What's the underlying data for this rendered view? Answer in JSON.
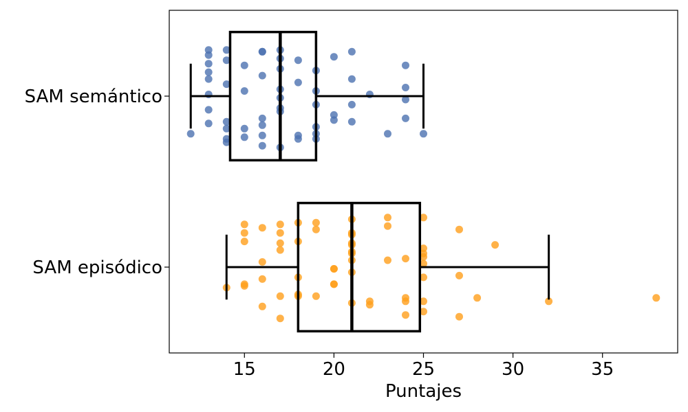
{
  "chart_data": {
    "type": "box",
    "xlabel": "Puntajes",
    "ylabel": "",
    "xlim": [
      10.8,
      39.2
    ],
    "x_ticks": [
      15,
      20,
      25,
      30,
      35
    ],
    "categories": [
      "SAM semántico",
      "SAM episódico"
    ],
    "grid": false,
    "legend": "none",
    "series": [
      {
        "name": "SAM semántico",
        "color": "#4c72b0",
        "box": {
          "whisker_low": 12,
          "q1": 14.2,
          "median": 17,
          "q3": 19,
          "whisker_high": 25
        },
        "points": [
          {
            "x": 12,
            "j": 0.22
          },
          {
            "x": 13,
            "j": -0.27
          },
          {
            "x": 13,
            "j": -0.24
          },
          {
            "x": 13,
            "j": -0.19
          },
          {
            "x": 13,
            "j": -0.14
          },
          {
            "x": 13,
            "j": -0.1
          },
          {
            "x": 13,
            "j": -0.01
          },
          {
            "x": 13,
            "j": 0.08
          },
          {
            "x": 13,
            "j": 0.16
          },
          {
            "x": 14,
            "j": -0.27
          },
          {
            "x": 14,
            "j": -0.21
          },
          {
            "x": 14,
            "j": -0.07
          },
          {
            "x": 14,
            "j": 0.15
          },
          {
            "x": 14,
            "j": 0.19
          },
          {
            "x": 14,
            "j": 0.25
          },
          {
            "x": 14,
            "j": 0.27
          },
          {
            "x": 15,
            "j": -0.18
          },
          {
            "x": 15,
            "j": -0.03
          },
          {
            "x": 15,
            "j": 0.19
          },
          {
            "x": 15,
            "j": 0.24
          },
          {
            "x": 16,
            "j": -0.26
          },
          {
            "x": 16,
            "j": -0.26
          },
          {
            "x": 16,
            "j": -0.12
          },
          {
            "x": 16,
            "j": 0.13
          },
          {
            "x": 16,
            "j": 0.17
          },
          {
            "x": 16,
            "j": 0.23
          },
          {
            "x": 16,
            "j": 0.29
          },
          {
            "x": 17,
            "j": -0.27
          },
          {
            "x": 17,
            "j": -0.22
          },
          {
            "x": 17,
            "j": -0.16
          },
          {
            "x": 17,
            "j": -0.04
          },
          {
            "x": 17,
            "j": 0.01
          },
          {
            "x": 17,
            "j": 0.07
          },
          {
            "x": 17,
            "j": 0.09
          },
          {
            "x": 17,
            "j": 0.3
          },
          {
            "x": 18,
            "j": -0.21
          },
          {
            "x": 18,
            "j": -0.08
          },
          {
            "x": 18,
            "j": 0.23
          },
          {
            "x": 18,
            "j": 0.25
          },
          {
            "x": 19,
            "j": -0.15
          },
          {
            "x": 19,
            "j": -0.03
          },
          {
            "x": 19,
            "j": 0.05
          },
          {
            "x": 19,
            "j": 0.18
          },
          {
            "x": 19,
            "j": 0.22
          },
          {
            "x": 19,
            "j": 0.25
          },
          {
            "x": 20,
            "j": -0.23
          },
          {
            "x": 20,
            "j": 0.11
          },
          {
            "x": 20,
            "j": 0.14
          },
          {
            "x": 21,
            "j": -0.26
          },
          {
            "x": 21,
            "j": -0.1
          },
          {
            "x": 21,
            "j": 0.05
          },
          {
            "x": 21,
            "j": 0.15
          },
          {
            "x": 22,
            "j": -0.01
          },
          {
            "x": 23,
            "j": 0.22
          },
          {
            "x": 24,
            "j": -0.18
          },
          {
            "x": 24,
            "j": -0.05
          },
          {
            "x": 24,
            "j": 0.02
          },
          {
            "x": 24,
            "j": 0.13
          },
          {
            "x": 25,
            "j": 0.22
          }
        ]
      },
      {
        "name": "SAM episódico",
        "color": "#ff9f1c",
        "box": {
          "whisker_low": 14,
          "q1": 18,
          "median": 21,
          "q3": 24.8,
          "whisker_high": 32
        },
        "points": [
          {
            "x": 14,
            "j": 0.12
          },
          {
            "x": 15,
            "j": -0.25
          },
          {
            "x": 15,
            "j": -0.2
          },
          {
            "x": 15,
            "j": -0.15
          },
          {
            "x": 15,
            "j": 0.1
          },
          {
            "x": 15,
            "j": 0.11
          },
          {
            "x": 16,
            "j": -0.23
          },
          {
            "x": 16,
            "j": -0.03
          },
          {
            "x": 16,
            "j": 0.07
          },
          {
            "x": 16,
            "j": 0.23
          },
          {
            "x": 17,
            "j": -0.25
          },
          {
            "x": 17,
            "j": -0.2
          },
          {
            "x": 17,
            "j": -0.14
          },
          {
            "x": 17,
            "j": -0.1
          },
          {
            "x": 17,
            "j": 0.17
          },
          {
            "x": 17,
            "j": 0.3
          },
          {
            "x": 18,
            "j": -0.26
          },
          {
            "x": 18,
            "j": -0.15
          },
          {
            "x": 18,
            "j": 0.06
          },
          {
            "x": 18,
            "j": 0.16
          },
          {
            "x": 18,
            "j": 0.17
          },
          {
            "x": 19,
            "j": -0.26
          },
          {
            "x": 19,
            "j": -0.22
          },
          {
            "x": 19,
            "j": 0.17
          },
          {
            "x": 20,
            "j": 0.01
          },
          {
            "x": 20,
            "j": 0.01
          },
          {
            "x": 20,
            "j": 0.1
          },
          {
            "x": 20,
            "j": 0.1
          },
          {
            "x": 21,
            "j": -0.28
          },
          {
            "x": 21,
            "j": -0.2
          },
          {
            "x": 21,
            "j": -0.19
          },
          {
            "x": 21,
            "j": -0.14
          },
          {
            "x": 21,
            "j": -0.13
          },
          {
            "x": 21,
            "j": -0.09
          },
          {
            "x": 21,
            "j": -0.08
          },
          {
            "x": 21,
            "j": -0.04
          },
          {
            "x": 21,
            "j": 0.03
          },
          {
            "x": 21,
            "j": 0.21
          },
          {
            "x": 22,
            "j": 0.2
          },
          {
            "x": 22,
            "j": 0.22
          },
          {
            "x": 23,
            "j": -0.29
          },
          {
            "x": 23,
            "j": -0.24
          },
          {
            "x": 23,
            "j": -0.04
          },
          {
            "x": 24,
            "j": -0.05
          },
          {
            "x": 24,
            "j": 0.18
          },
          {
            "x": 24,
            "j": 0.2
          },
          {
            "x": 24,
            "j": 0.28
          },
          {
            "x": 25,
            "j": -0.29
          },
          {
            "x": 25,
            "j": -0.11
          },
          {
            "x": 25,
            "j": -0.08
          },
          {
            "x": 25,
            "j": -0.06
          },
          {
            "x": 25,
            "j": -0.02
          },
          {
            "x": 25,
            "j": 0.06
          },
          {
            "x": 25,
            "j": 0.2
          },
          {
            "x": 25,
            "j": 0.26
          },
          {
            "x": 27,
            "j": -0.22
          },
          {
            "x": 27,
            "j": 0.05
          },
          {
            "x": 27,
            "j": 0.29
          },
          {
            "x": 28,
            "j": 0.18
          },
          {
            "x": 29,
            "j": -0.13
          },
          {
            "x": 32,
            "j": 0.2
          },
          {
            "x": 38,
            "j": 0.18
          }
        ]
      }
    ]
  }
}
